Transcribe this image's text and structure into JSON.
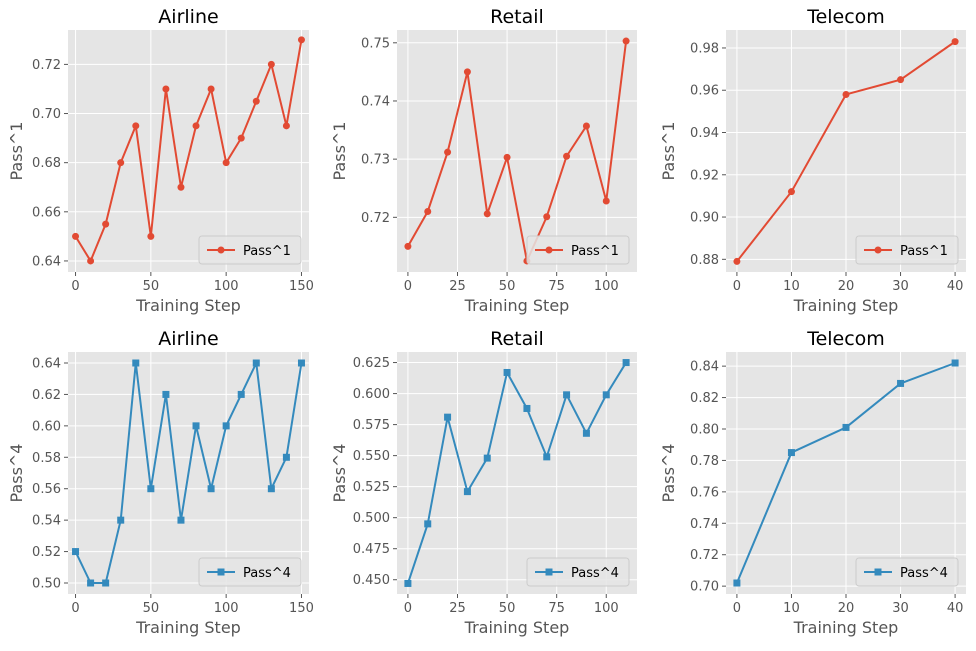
{
  "colors": {
    "pass1": "#E24A33",
    "pass4": "#348ABD",
    "panel_bg": "#E5E5E5",
    "grid": "#FFFFFF",
    "text": "#000000",
    "tick_text": "#555555"
  },
  "chart_data": [
    {
      "type": "line",
      "title": "Airline",
      "xlabel": "Training Step",
      "ylabel": "Pass^1",
      "xlim": [
        -5,
        155
      ],
      "ylim": [
        0.6355,
        0.734
      ],
      "xticks": [
        0,
        50,
        100,
        150
      ],
      "xtick_labels": [
        "0",
        "50",
        "100",
        "150"
      ],
      "yticks": [
        0.64,
        0.66,
        0.68,
        0.7,
        0.72
      ],
      "ytick_labels": [
        "0.64",
        "0.66",
        "0.68",
        "0.70",
        "0.72"
      ],
      "legend": "lower right",
      "marker": "circle",
      "series": [
        {
          "name": "Pass^1",
          "color": "#E24A33",
          "x": [
            0,
            10,
            20,
            30,
            40,
            50,
            60,
            70,
            80,
            90,
            100,
            110,
            120,
            130,
            140,
            150
          ],
          "y": [
            0.65,
            0.64,
            0.655,
            0.68,
            0.695,
            0.65,
            0.71,
            0.67,
            0.695,
            0.71,
            0.68,
            0.69,
            0.705,
            0.72,
            0.695,
            0.73
          ]
        }
      ]
    },
    {
      "type": "line",
      "title": "Retail",
      "xlabel": "Training Step",
      "ylabel": "Pass^1",
      "xlim": [
        -5.5,
        115.5
      ],
      "ylim": [
        0.7106,
        0.7522
      ],
      "xticks": [
        0,
        25,
        50,
        75,
        100
      ],
      "xtick_labels": [
        "0",
        "25",
        "50",
        "75",
        "100"
      ],
      "yticks": [
        0.72,
        0.73,
        0.74,
        0.75
      ],
      "ytick_labels": [
        "0.72",
        "0.73",
        "0.74",
        "0.75"
      ],
      "legend": "lower right",
      "marker": "circle",
      "series": [
        {
          "name": "Pass^1",
          "color": "#E24A33",
          "x": [
            0,
            10,
            20,
            30,
            40,
            50,
            60,
            70,
            80,
            90,
            100,
            110
          ],
          "y": [
            0.715,
            0.721,
            0.7312,
            0.745,
            0.7206,
            0.7303,
            0.7125,
            0.7201,
            0.7305,
            0.7357,
            0.7228,
            0.7503
          ]
        }
      ]
    },
    {
      "type": "line",
      "title": "Telecom",
      "xlabel": "Training Step",
      "ylabel": "Pass^1",
      "xlim": [
        -2,
        42
      ],
      "ylim": [
        0.874,
        0.9885
      ],
      "xticks": [
        0,
        10,
        20,
        30,
        40
      ],
      "xtick_labels": [
        "0",
        "10",
        "20",
        "30",
        "40"
      ],
      "yticks": [
        0.88,
        0.9,
        0.92,
        0.94,
        0.96,
        0.98
      ],
      "ytick_labels": [
        "0.88",
        "0.90",
        "0.92",
        "0.94",
        "0.96",
        "0.98"
      ],
      "legend": "lower right",
      "marker": "circle",
      "series": [
        {
          "name": "Pass^1",
          "color": "#E24A33",
          "x": [
            0,
            10,
            20,
            30,
            40
          ],
          "y": [
            0.879,
            0.912,
            0.958,
            0.965,
            0.983
          ]
        }
      ]
    },
    {
      "type": "line",
      "title": "Airline",
      "xlabel": "Training Step",
      "ylabel": "Pass^4",
      "xlim": [
        -5,
        155
      ],
      "ylim": [
        0.493,
        0.647
      ],
      "xticks": [
        0,
        50,
        100,
        150
      ],
      "xtick_labels": [
        "0",
        "50",
        "100",
        "150"
      ],
      "yticks": [
        0.5,
        0.52,
        0.54,
        0.56,
        0.58,
        0.6,
        0.62,
        0.64
      ],
      "ytick_labels": [
        "0.50",
        "0.52",
        "0.54",
        "0.56",
        "0.58",
        "0.60",
        "0.62",
        "0.64"
      ],
      "legend": "lower right",
      "marker": "square",
      "series": [
        {
          "name": "Pass^4",
          "color": "#348ABD",
          "x": [
            0,
            10,
            20,
            30,
            40,
            50,
            60,
            70,
            80,
            90,
            100,
            110,
            120,
            130,
            140,
            150
          ],
          "y": [
            0.52,
            0.5,
            0.5,
            0.54,
            0.64,
            0.56,
            0.62,
            0.54,
            0.6,
            0.56,
            0.6,
            0.62,
            0.64,
            0.56,
            0.58,
            0.64
          ]
        }
      ]
    },
    {
      "type": "line",
      "title": "Retail",
      "xlabel": "Training Step",
      "ylabel": "Pass^4",
      "xlim": [
        -5.5,
        115.5
      ],
      "ylim": [
        0.4385,
        0.6335
      ],
      "xticks": [
        0,
        25,
        50,
        75,
        100
      ],
      "xtick_labels": [
        "0",
        "25",
        "50",
        "75",
        "100"
      ],
      "yticks": [
        0.45,
        0.475,
        0.5,
        0.525,
        0.55,
        0.575,
        0.6,
        0.625
      ],
      "ytick_labels": [
        "0.450",
        "0.475",
        "0.500",
        "0.525",
        "0.550",
        "0.575",
        "0.600",
        "0.625"
      ],
      "legend": "lower right",
      "marker": "square",
      "series": [
        {
          "name": "Pass^4",
          "color": "#348ABD",
          "x": [
            0,
            10,
            20,
            30,
            40,
            50,
            60,
            70,
            80,
            90,
            100,
            110
          ],
          "y": [
            0.447,
            0.495,
            0.581,
            0.521,
            0.548,
            0.617,
            0.588,
            0.549,
            0.599,
            0.568,
            0.599,
            0.625
          ]
        }
      ]
    },
    {
      "type": "line",
      "title": "Telecom",
      "xlabel": "Training Step",
      "ylabel": "Pass^4",
      "xlim": [
        -2,
        42
      ],
      "ylim": [
        0.695,
        0.849
      ],
      "xticks": [
        0,
        10,
        20,
        30,
        40
      ],
      "xtick_labels": [
        "0",
        "10",
        "20",
        "30",
        "40"
      ],
      "yticks": [
        0.7,
        0.72,
        0.74,
        0.76,
        0.78,
        0.8,
        0.82,
        0.84
      ],
      "ytick_labels": [
        "0.70",
        "0.72",
        "0.74",
        "0.76",
        "0.78",
        "0.80",
        "0.82",
        "0.84"
      ],
      "legend": "lower right",
      "marker": "square",
      "series": [
        {
          "name": "Pass^4",
          "color": "#348ABD",
          "x": [
            0,
            10,
            20,
            30,
            40
          ],
          "y": [
            0.702,
            0.785,
            0.801,
            0.829,
            0.842
          ]
        }
      ]
    }
  ]
}
